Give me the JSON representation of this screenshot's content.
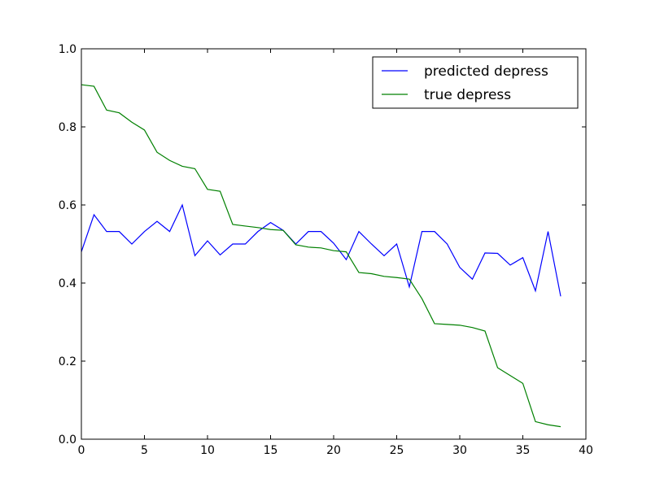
{
  "chart_data": {
    "type": "line",
    "title": "",
    "xlabel": "",
    "ylabel": "",
    "xlim": [
      0,
      40
    ],
    "ylim": [
      0.0,
      1.0
    ],
    "xticks": [
      0,
      5,
      10,
      15,
      20,
      25,
      30,
      35,
      40
    ],
    "yticks": [
      0.0,
      0.2,
      0.4,
      0.6,
      0.8,
      1.0
    ],
    "xtick_labels": [
      "0",
      "5",
      "10",
      "15",
      "20",
      "25",
      "30",
      "35",
      "40"
    ],
    "ytick_labels": [
      "0.0",
      "0.2",
      "0.4",
      "0.6",
      "0.8",
      "1.0"
    ],
    "grid": false,
    "legend": "top-right",
    "x": [
      0,
      1,
      2,
      3,
      4,
      5,
      6,
      7,
      8,
      9,
      10,
      11,
      12,
      13,
      14,
      15,
      16,
      17,
      18,
      19,
      20,
      21,
      22,
      23,
      24,
      25,
      26,
      27,
      28,
      29,
      30,
      31,
      32,
      33,
      34,
      35,
      36,
      37,
      38
    ],
    "series": [
      {
        "name": "predicted depress",
        "color": "#0000ff",
        "values": [
          0.48,
          0.575,
          0.532,
          0.532,
          0.5,
          0.532,
          0.558,
          0.532,
          0.6,
          0.47,
          0.508,
          0.472,
          0.5,
          0.5,
          0.532,
          0.555,
          0.535,
          0.5,
          0.532,
          0.532,
          0.502,
          0.46,
          0.532,
          0.5,
          0.47,
          0.5,
          0.39,
          0.532,
          0.532,
          0.5,
          0.44,
          0.41,
          0.477,
          0.476,
          0.446,
          0.465,
          0.38,
          0.532,
          0.366
        ]
      },
      {
        "name": "true depress",
        "color": "#008000",
        "values": [
          0.908,
          0.904,
          0.843,
          0.836,
          0.812,
          0.792,
          0.735,
          0.714,
          0.699,
          0.693,
          0.64,
          0.635,
          0.55,
          0.546,
          0.542,
          0.537,
          0.535,
          0.498,
          0.492,
          0.49,
          0.483,
          0.48,
          0.427,
          0.424,
          0.417,
          0.414,
          0.41,
          0.36,
          0.296,
          0.294,
          0.292,
          0.286,
          0.277,
          0.183,
          0.163,
          0.143,
          0.045,
          0.037,
          0.032
        ]
      }
    ]
  }
}
